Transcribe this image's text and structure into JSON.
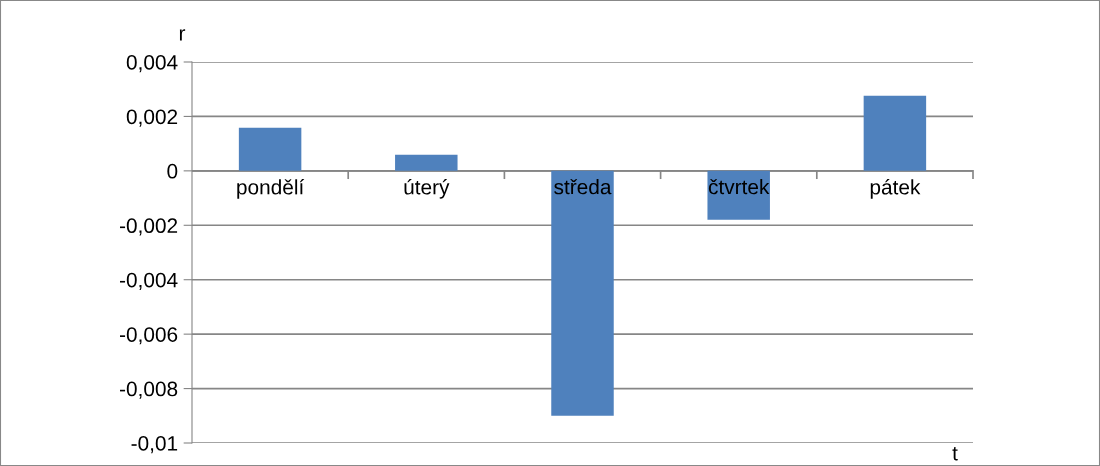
{
  "chart_data": {
    "type": "bar",
    "xlabel": "t",
    "ylabel": "r",
    "categories": [
      "pondělí",
      "úterý",
      "středa",
      "čtvrtek",
      "pátek"
    ],
    "values": [
      0.00158,
      0.00059,
      -0.009,
      -0.0018,
      0.00276
    ],
    "color": "#4f81bd",
    "ylim": [
      -0.01,
      0.004
    ],
    "yticks": [
      {
        "value": -0.01,
        "label": "-0,01"
      },
      {
        "value": -0.008,
        "label": "-0,008"
      },
      {
        "value": -0.006,
        "label": "-0,006"
      },
      {
        "value": -0.004,
        "label": "-0,004"
      },
      {
        "value": -0.002,
        "label": "-0,002"
      },
      {
        "value": 0,
        "label": "0"
      },
      {
        "value": 0.002,
        "label": "0,002"
      },
      {
        "value": 0.004,
        "label": "0,004"
      }
    ],
    "grid": "y",
    "legend": false
  }
}
